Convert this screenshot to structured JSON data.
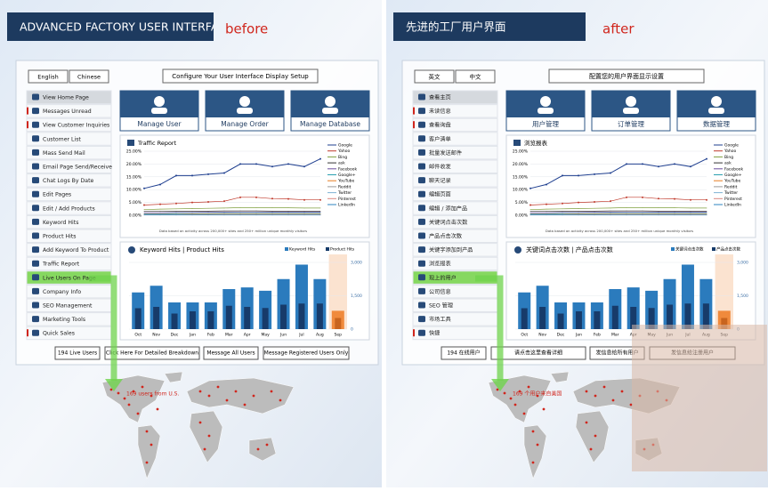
{
  "panels": [
    {
      "header": "ADVANCED FACTORY USER INTERFACE",
      "label": "before",
      "languages": [
        "English",
        "Chinese"
      ],
      "configure": "Configure Your User Interface Display Setup",
      "menu": [
        "View Home Page",
        "Messages Unread",
        "View Customer Inquiries",
        "Customer List",
        "Mass Send Mail",
        "Email Page Send/Receive",
        "Chat Logs By Date",
        "Edit Pages",
        "Edit / Add Products",
        "Keyword Hits",
        "Product Hits",
        "Add Keyword To Product",
        "Traffic Report",
        "Live Users On Page",
        "Company Info",
        "SEO Management",
        "Marketing Tools",
        "Quick Sales"
      ],
      "tiles": [
        "Manage User",
        "Manage Order",
        "Manage Database"
      ],
      "traffic_title": "Traffic Report",
      "traffic_note": "Data based on activity across 200,000+ sites and 250+ million unique monthly visitors",
      "keyword_title": "Keyword Hits | Product Hits",
      "keyword_legend": [
        "Keyword Hits",
        "Product Hits"
      ],
      "buttons": [
        "194 Live Users",
        "Click Here For Detailed Breakdown",
        "Message All Users",
        "Message Registered Users Only"
      ],
      "map_label": "169 users from U.S."
    },
    {
      "header": "先进的工厂用户界面",
      "label": "after",
      "languages": [
        "英文",
        "中文"
      ],
      "configure": "配置您的用户界面显示设置",
      "menu": [
        "查看主页",
        "未读信息",
        "查看询盘",
        "客户清单",
        "批量发送邮件",
        "邮件收发",
        "聊天记录",
        "编辑页面",
        "编辑 / 添加产品",
        "关键词点击次数",
        "产品点击次数",
        "关键字添加到产品",
        "浏览报表",
        "现上的用户",
        "公司信息",
        "SEO 管理",
        "市场工具",
        "快捷"
      ],
      "tiles": [
        "用户管理",
        "订单管理",
        "数据管理"
      ],
      "traffic_title": "浏览报表",
      "traffic_note": "Data based on activity across 200,000+ sites and 250+ million unique monthly visitors",
      "keyword_title": "关键词点击次数 |  产品点击次数",
      "keyword_legend": [
        "关键词点击次数",
        "产品点击次数"
      ],
      "buttons": [
        "194 在线用户",
        "请点击这里查看详细",
        "发信息给所有用户",
        "发信息给注册用户"
      ],
      "map_label": "169 个用户来自美国"
    }
  ],
  "charts": {
    "traffic": {
      "type": "line",
      "ylim": [
        0,
        25
      ],
      "yticks": [
        {
          "value": 0,
          "label": "0.00%"
        },
        {
          "value": 5,
          "label": "5.00%"
        },
        {
          "value": 10,
          "label": "10.00%"
        },
        {
          "value": 15,
          "label": "15.00%"
        },
        {
          "value": 20,
          "label": "20.00%"
        },
        {
          "value": 25,
          "label": "25.00%"
        }
      ],
      "series": [
        {
          "name": "Google",
          "color": "#1f3f8f",
          "values": [
            10.5,
            12,
            15.5,
            15.5,
            16,
            16.5,
            20,
            20,
            19,
            20,
            19,
            22
          ]
        },
        {
          "name": "Yahoo",
          "color": "#c0392b",
          "values": [
            4,
            4.3,
            4.6,
            5,
            5.2,
            5.5,
            7,
            7,
            6.5,
            6.4,
            6,
            6
          ]
        },
        {
          "name": "Bing",
          "color": "#7f9f3f",
          "values": [
            2.2,
            2.4,
            2.5,
            2.6,
            2.7,
            2.8,
            3,
            3,
            2.9,
            2.9,
            2.8,
            2.8
          ]
        },
        {
          "name": "ask",
          "color": "#333333",
          "values": [
            1.5,
            1.5,
            1.6,
            1.6,
            1.6,
            1.7,
            1.7,
            1.7,
            1.6,
            1.6,
            1.6,
            1.6
          ]
        },
        {
          "name": "Facebook",
          "color": "#6a4c9c",
          "values": [
            1,
            1,
            1.1,
            1.1,
            1.2,
            1.2,
            1.3,
            1.3,
            1.2,
            1.2,
            1.2,
            1.2
          ]
        },
        {
          "name": "Google+",
          "color": "#2aa0b0",
          "values": [
            0.6,
            0.6,
            0.7,
            0.7,
            0.7,
            0.8,
            0.8,
            0.8,
            0.8,
            0.8,
            0.8,
            0.8
          ]
        },
        {
          "name": "YouTube",
          "color": "#e67e22",
          "values": [
            0.4,
            0.4,
            0.4,
            0.5,
            0.5,
            0.5,
            0.5,
            0.5,
            0.5,
            0.5,
            0.5,
            0.5
          ]
        },
        {
          "name": "Reddit",
          "color": "#999999",
          "values": [
            0.3,
            0.3,
            0.3,
            0.3,
            0.3,
            0.3,
            0.3,
            0.3,
            0.3,
            0.3,
            0.3,
            0.3
          ]
        },
        {
          "name": "Twitter",
          "color": "#7fb3d5",
          "values": [
            0.2,
            0.2,
            0.2,
            0.2,
            0.2,
            0.2,
            0.2,
            0.2,
            0.2,
            0.2,
            0.2,
            0.2
          ]
        },
        {
          "name": "Pinterest",
          "color": "#d98880",
          "values": [
            0.1,
            0.1,
            0.1,
            0.1,
            0.1,
            0.1,
            0.1,
            0.1,
            0.1,
            0.1,
            0.1,
            0.1
          ]
        },
        {
          "name": "LinkedIn",
          "color": "#2e86c1",
          "values": [
            0.1,
            0.1,
            0.1,
            0.1,
            0.1,
            0.1,
            0.1,
            0.1,
            0.1,
            0.1,
            0.1,
            0.1
          ]
        }
      ]
    },
    "keyword": {
      "type": "bar",
      "categories": [
        "Oct",
        "Nov",
        "Dec",
        "Jan",
        "Feb",
        "Mar",
        "Apr",
        "May",
        "Jun",
        "Jul",
        "Aug",
        "Sep"
      ],
      "ylim": [
        0,
        3200
      ],
      "yticks": [
        0,
        {
          "value": 1500,
          "label": "1,500"
        },
        {
          "value": 3000,
          "label": "3,000"
        }
      ],
      "series": [
        {
          "color": "#2b7bbd",
          "values": [
            1650,
            1950,
            1200,
            1200,
            1200,
            1800,
            1875,
            1725,
            2250,
            2900,
            2250,
            825
          ]
        },
        {
          "color": "#173b6a",
          "values": [
            940,
            1000,
            700,
            800,
            800,
            1050,
            1000,
            950,
            1100,
            1150,
            1150,
            500
          ]
        }
      ],
      "highlight": "Sep",
      "highlight_colors": [
        "#f08a3c",
        "#c8641e"
      ],
      "highlight_band": "#fbe3d0"
    }
  }
}
